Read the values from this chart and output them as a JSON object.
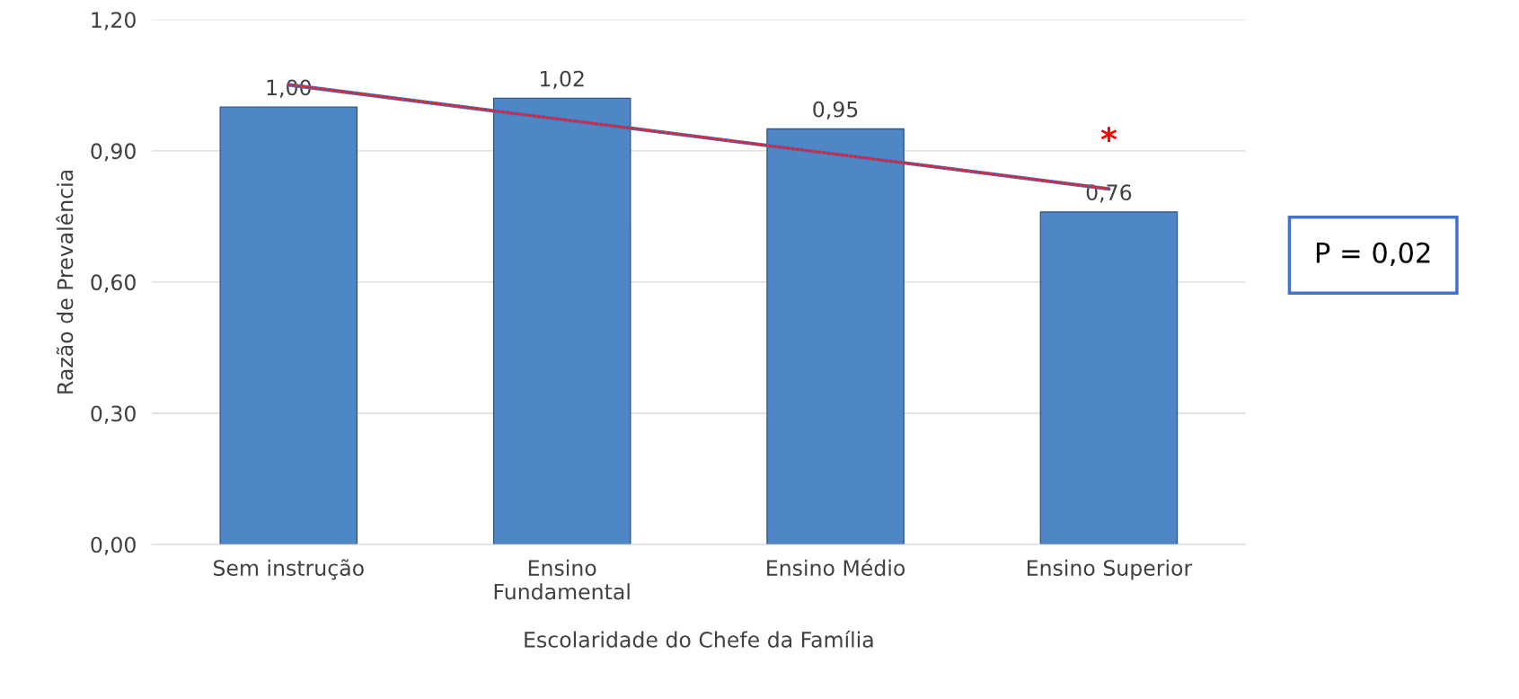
{
  "chart_data": {
    "type": "bar",
    "xlabel": "Escolaridade do Chefe da Família",
    "ylabel": "Razão de Prevalência",
    "categories": [
      "Sem instrução",
      "Ensino\nFundamental",
      "Ensino Médio",
      "Ensino Superior"
    ],
    "series": [
      {
        "color": "#4f86c6",
        "values": [
          1.0,
          1.02,
          0.95,
          0.76
        ],
        "value_labels": [
          "1,00",
          "1,02",
          "0,95",
          "0,76"
        ]
      },
      {
        "type": "line",
        "color": "#e8202a",
        "values": [
          1.051,
          null,
          null,
          0.813
        ],
        "line_style": "dotted",
        "marker": "none"
      }
    ],
    "ylim": [
      0,
      1.2
    ],
    "yticks": [
      {
        "value": 0,
        "label": "0,00"
      },
      {
        "value": 0.3,
        "label": "0,30"
      },
      {
        "value": 0.6,
        "label": "0,60"
      },
      {
        "value": 0.9,
        "label": "0,90"
      },
      {
        "value": 1.2,
        "label": "1,20"
      }
    ],
    "grid": "y",
    "legend": false,
    "annotations": [
      "P = 0,02",
      "*"
    ]
  }
}
